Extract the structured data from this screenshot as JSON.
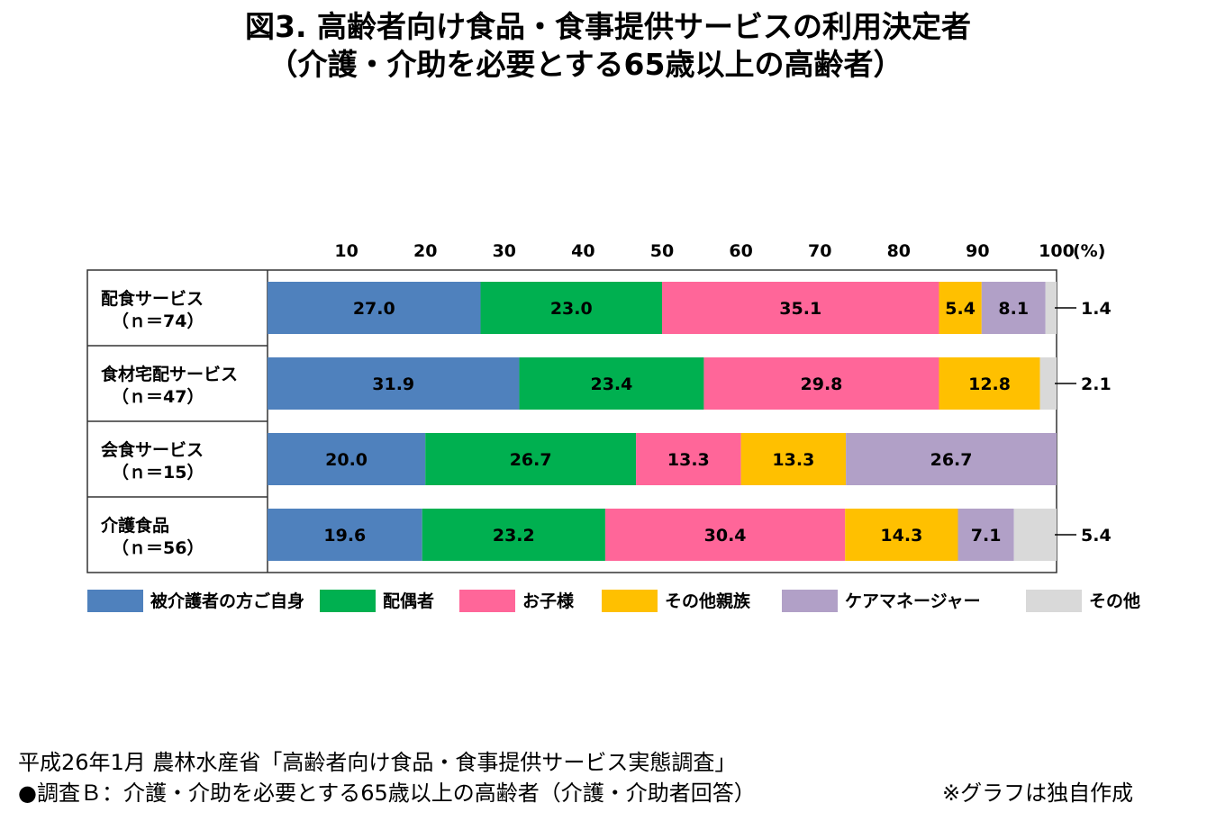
{
  "title": {
    "line1": "図3.  高齢者向け食品・食事提供サービスの利用決定者",
    "line2": "（介護・介助を必要とする65歳以上の高齢者）"
  },
  "chart_data": {
    "type": "bar",
    "orientation": "horizontal",
    "stacked": true,
    "axis_unit": "(%)",
    "xlim": [
      0,
      100
    ],
    "x_ticks": [
      "10",
      "20",
      "30",
      "40",
      "50",
      "60",
      "70",
      "80",
      "90",
      "100"
    ],
    "categories": [
      {
        "name": "配食サービス",
        "n": "（ｎ＝74）"
      },
      {
        "name": "食材宅配サービス",
        "n": "（ｎ＝47）"
      },
      {
        "name": "会食サービス",
        "n": "（ｎ＝15）"
      },
      {
        "name": "介護食品",
        "n": "（ｎ＝56）"
      }
    ],
    "series": [
      {
        "name": "被介護者の方ご自身",
        "color": "#4F81BD",
        "values": [
          27.0,
          31.9,
          20.0,
          19.6
        ],
        "labels": [
          "27.0",
          "31.9",
          "20.0",
          "19.6"
        ]
      },
      {
        "name": "配偶者",
        "color": "#00B050",
        "values": [
          23.0,
          23.4,
          26.7,
          23.2
        ],
        "labels": [
          "23.0",
          "23.4",
          "26.7",
          "23.2"
        ]
      },
      {
        "name": "お子様",
        "color": "#FF6699",
        "values": [
          35.1,
          29.8,
          13.3,
          30.4
        ],
        "labels": [
          "35.1",
          "29.8",
          "13.3",
          "30.4"
        ]
      },
      {
        "name": "その他親族",
        "color": "#FFC000",
        "values": [
          5.4,
          12.8,
          13.3,
          14.3
        ],
        "labels": [
          "5.4",
          "12.8",
          "13.3",
          "14.3"
        ]
      },
      {
        "name": "ケアマネージャー",
        "color": "#B1A0C7",
        "values": [
          8.1,
          0.0,
          26.7,
          7.1
        ],
        "labels": [
          "8.1",
          "",
          "26.7",
          "7.1"
        ]
      },
      {
        "name": "その他",
        "color": "#D9D9D9",
        "values": [
          1.4,
          2.1,
          0.0,
          5.4
        ],
        "labels": [
          "1.4",
          "2.1",
          "",
          "5.4"
        ]
      }
    ],
    "legend_position": "bottom"
  },
  "source": {
    "line1": "平成26年1月  農林水産省「高齢者向け食品・食事提供サービス実態調査」",
    "line2": "●調査Ｂ：介護・介助を必要とする65歳以上の高齢者（介護・介助者回答）",
    "note": "※グラフは独自作成"
  }
}
